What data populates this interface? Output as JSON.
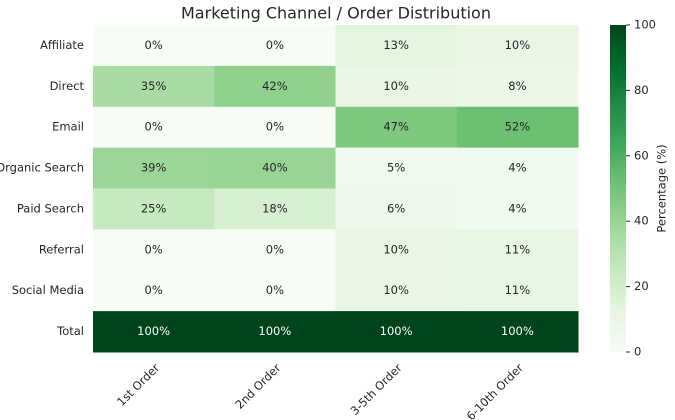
{
  "chart_data": {
    "type": "heatmap",
    "title": "Marketing Channel / Order Distribution",
    "x_categories": [
      "1st Order",
      "2nd Order",
      "3-5th Order",
      "6-10th Order"
    ],
    "y_categories": [
      "Affiliate",
      "Direct",
      "Email",
      "Organic Search",
      "Paid Search",
      "Referral",
      "Social Media",
      "Total"
    ],
    "values": [
      [
        0,
        0,
        13,
        10
      ],
      [
        35,
        42,
        10,
        8
      ],
      [
        0,
        0,
        47,
        52
      ],
      [
        39,
        40,
        5,
        4
      ],
      [
        25,
        18,
        6,
        4
      ],
      [
        0,
        0,
        10,
        11
      ],
      [
        0,
        0,
        10,
        11
      ],
      [
        100,
        100,
        100,
        100
      ]
    ],
    "value_labels": [
      [
        "0%",
        "0%",
        "13%",
        "10%"
      ],
      [
        "35%",
        "42%",
        "10%",
        "8%"
      ],
      [
        "0%",
        "0%",
        "47%",
        "52%"
      ],
      [
        "39%",
        "40%",
        "5%",
        "4%"
      ],
      [
        "25%",
        "18%",
        "6%",
        "4%"
      ],
      [
        "0%",
        "0%",
        "10%",
        "11%"
      ],
      [
        "0%",
        "0%",
        "10%",
        "11%"
      ],
      [
        "100%",
        "100%",
        "100%",
        "100%"
      ]
    ],
    "colorbar_label": "Percentage (%)",
    "clim": [
      0,
      100
    ],
    "colorbar_ticks": [
      0,
      20,
      40,
      60,
      80,
      100
    ],
    "colormap": [
      "#f7fcf5",
      "#e5f5e0",
      "#c7e9c0",
      "#a1d99b",
      "#74c476",
      "#41ab5d",
      "#238b45",
      "#006d2c",
      "#00441b"
    ]
  }
}
